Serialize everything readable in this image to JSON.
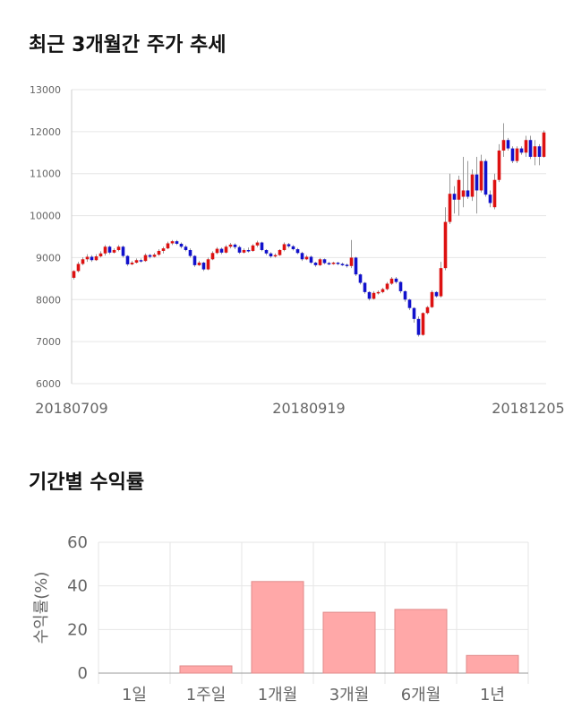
{
  "sections": {
    "price_title": "최근 3개월간 주가 추세",
    "returns_title": "기간별 수익률"
  },
  "colors": {
    "up": "#dd1111",
    "down": "#1111cc",
    "bar_fill": "#ffa8a8",
    "bar_stroke": "#e08a8a",
    "grid": "#e6e6e6"
  },
  "chart_data": [
    {
      "type": "candlestick",
      "title": "",
      "ylim": [
        6000,
        13000
      ],
      "yticks": [
        6000,
        7000,
        8000,
        9000,
        10000,
        11000,
        12000,
        13000
      ],
      "ytick_labels": [
        "6000",
        "7000",
        "8000",
        "9000",
        "10000",
        "11000",
        "12000",
        "13000"
      ],
      "xtick_labels": [
        "20180709",
        "20180919",
        "20181205"
      ],
      "grid": true,
      "candles": [
        [
          8520,
          8680,
          8480,
          8700
        ],
        [
          8680,
          8850,
          8650,
          8900
        ],
        [
          8850,
          8960,
          8820,
          9010
        ],
        [
          8960,
          9020,
          8900,
          9080
        ],
        [
          9020,
          8940,
          8900,
          9060
        ],
        [
          8940,
          9030,
          8920,
          9080
        ],
        [
          9030,
          9100,
          9000,
          9150
        ],
        [
          9100,
          9260,
          9050,
          9300
        ],
        [
          9260,
          9120,
          9080,
          9290
        ],
        [
          9120,
          9180,
          9100,
          9220
        ],
        [
          9180,
          9260,
          9150,
          9300
        ],
        [
          9260,
          9040,
          9000,
          9290
        ],
        [
          9040,
          8840,
          8800,
          9060
        ],
        [
          8840,
          8880,
          8820,
          8920
        ],
        [
          8880,
          8940,
          8860,
          8980
        ],
        [
          8940,
          8920,
          8880,
          8980
        ],
        [
          8920,
          9060,
          8900,
          9100
        ],
        [
          9060,
          9020,
          8980,
          9090
        ],
        [
          9020,
          9070,
          9000,
          9110
        ],
        [
          9070,
          9160,
          9040,
          9200
        ],
        [
          9160,
          9220,
          9100,
          9260
        ],
        [
          9220,
          9340,
          9200,
          9380
        ],
        [
          9340,
          9390,
          9300,
          9420
        ],
        [
          9390,
          9330,
          9300,
          9420
        ],
        [
          9330,
          9260,
          9220,
          9360
        ],
        [
          9260,
          9180,
          9150,
          9300
        ],
        [
          9180,
          9040,
          9000,
          9220
        ],
        [
          9040,
          8820,
          8780,
          9060
        ],
        [
          8820,
          8880,
          8800,
          8920
        ],
        [
          8880,
          8720,
          8680,
          8900
        ],
        [
          8720,
          8960,
          8700,
          9000
        ],
        [
          8960,
          9110,
          8940,
          9150
        ],
        [
          9110,
          9210,
          9080,
          9250
        ],
        [
          9210,
          9120,
          9080,
          9240
        ],
        [
          9120,
          9260,
          9100,
          9300
        ],
        [
          9260,
          9310,
          9220,
          9350
        ],
        [
          9310,
          9250,
          9200,
          9340
        ],
        [
          9250,
          9120,
          9090,
          9280
        ],
        [
          9120,
          9180,
          9100,
          9220
        ],
        [
          9180,
          9160,
          9120,
          9240
        ],
        [
          9160,
          9290,
          9140,
          9320
        ],
        [
          9290,
          9360,
          9250,
          9400
        ],
        [
          9360,
          9180,
          9150,
          9380
        ],
        [
          9180,
          9100,
          9060,
          9200
        ],
        [
          9100,
          9030,
          8990,
          9130
        ],
        [
          9030,
          9060,
          9000,
          9100
        ],
        [
          9060,
          9180,
          9040,
          9200
        ],
        [
          9180,
          9320,
          9150,
          9360
        ],
        [
          9320,
          9270,
          9230,
          9350
        ],
        [
          9270,
          9200,
          9170,
          9300
        ],
        [
          9200,
          9110,
          9080,
          9230
        ],
        [
          9110,
          8960,
          8920,
          9140
        ],
        [
          8960,
          9020,
          8940,
          9060
        ],
        [
          9020,
          8880,
          8850,
          9050
        ],
        [
          8880,
          8820,
          8780,
          8900
        ],
        [
          8820,
          8960,
          8800,
          8990
        ],
        [
          8960,
          8870,
          8840,
          8980
        ],
        [
          8870,
          8850,
          8820,
          8900
        ],
        [
          8850,
          8880,
          8830,
          8900
        ],
        [
          8880,
          8850,
          8820,
          8900
        ],
        [
          8850,
          8830,
          8800,
          8880
        ],
        [
          8830,
          8800,
          8760,
          8860
        ],
        [
          8800,
          9000,
          8750,
          9420
        ],
        [
          9000,
          8600,
          8560,
          9020
        ],
        [
          8600,
          8400,
          8360,
          8620
        ],
        [
          8400,
          8180,
          8140,
          8420
        ],
        [
          8180,
          8020,
          7980,
          8200
        ],
        [
          8020,
          8160,
          8000,
          8200
        ],
        [
          8160,
          8180,
          8120,
          8220
        ],
        [
          8180,
          8250,
          8150,
          8280
        ],
        [
          8250,
          8380,
          8220,
          8420
        ],
        [
          8380,
          8500,
          8350,
          8540
        ],
        [
          8500,
          8420,
          8380,
          8540
        ],
        [
          8420,
          8200,
          8150,
          8440
        ],
        [
          8200,
          8000,
          7950,
          8220
        ],
        [
          8000,
          7800,
          7750,
          8020
        ],
        [
          7800,
          7540,
          7450,
          7820
        ],
        [
          7540,
          7160,
          7120,
          7600
        ],
        [
          7160,
          7680,
          7140,
          7700
        ],
        [
          7680,
          7820,
          7650,
          7850
        ],
        [
          7820,
          8180,
          7800,
          8220
        ],
        [
          8180,
          8080,
          8050,
          8200
        ],
        [
          8080,
          8750,
          8050,
          8900
        ],
        [
          8750,
          9850,
          8700,
          10200
        ],
        [
          9850,
          10520,
          9800,
          11000
        ],
        [
          10520,
          10380,
          10050,
          10700
        ],
        [
          10380,
          10850,
          10000,
          10950
        ],
        [
          10450,
          10600,
          10200,
          11400
        ],
        [
          10600,
          10450,
          10400,
          11300
        ],
        [
          10450,
          10980,
          10350,
          11100
        ],
        [
          10980,
          10600,
          10050,
          11400
        ],
        [
          10600,
          11300,
          10550,
          11450
        ],
        [
          11300,
          10500,
          10450,
          11350
        ],
        [
          10500,
          10300,
          10200,
          10600
        ],
        [
          10200,
          10850,
          10150,
          11000
        ],
        [
          10850,
          11550,
          10800,
          11700
        ],
        [
          11550,
          11800,
          11400,
          12200
        ],
        [
          11800,
          11600,
          11550,
          11850
        ],
        [
          11600,
          11300,
          11250,
          11650
        ],
        [
          11300,
          11600,
          11250,
          11650
        ],
        [
          11600,
          11500,
          11450,
          11650
        ],
        [
          11500,
          11800,
          11400,
          11900
        ],
        [
          11800,
          11400,
          11350,
          11900
        ],
        [
          11400,
          11650,
          11200,
          11800
        ],
        [
          11650,
          11400,
          11200,
          11700
        ],
        [
          11400,
          11980,
          11380,
          12030
        ]
      ]
    },
    {
      "type": "bar",
      "title": "",
      "ylabel": "수익률(%)",
      "categories": [
        "1일",
        "1주일",
        "1개월",
        "3개월",
        "6개월",
        "1년"
      ],
      "values": [
        0,
        3.3,
        42,
        27.9,
        29.2,
        8.1
      ],
      "ylim": [
        0,
        60
      ],
      "yticks": [
        0,
        20,
        40,
        60
      ],
      "grid": true
    }
  ]
}
